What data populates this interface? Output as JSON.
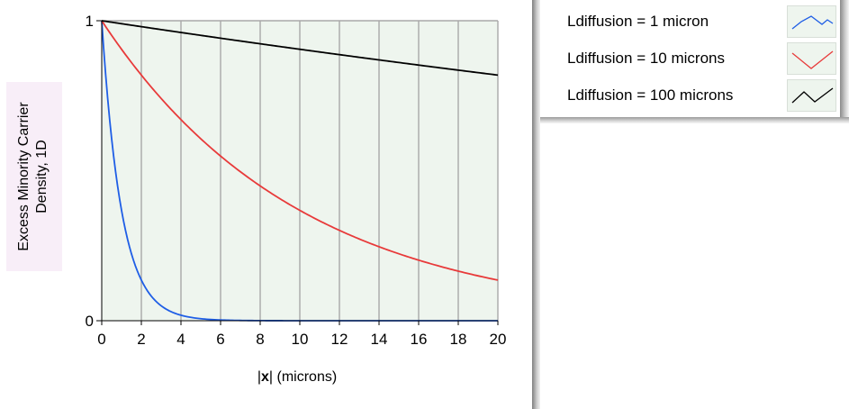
{
  "chart_data": {
    "type": "line",
    "xlabel": {
      "prefix": "|",
      "bold": "x",
      "suffix": "| (microns)"
    },
    "ylabel": [
      "Excess Minority Carrier",
      "Density, 1D"
    ],
    "xlim": [
      0,
      20
    ],
    "ylim": [
      0,
      1
    ],
    "x_ticks": [
      0,
      2,
      4,
      6,
      8,
      10,
      12,
      14,
      16,
      18,
      20
    ],
    "y_ticks": [
      0,
      1
    ],
    "grid": "vertical",
    "legend_position": "top-right",
    "series": [
      {
        "name": "Ldiffusion = 1 micron",
        "color": "#1f5ee6",
        "diffusion_length": 1,
        "x": [
          0,
          0.5,
          1,
          1.5,
          2,
          2.5,
          3,
          4,
          5,
          6,
          8,
          10,
          12,
          14,
          16,
          18,
          20
        ],
        "y": [
          1,
          0.607,
          0.368,
          0.223,
          0.135,
          0.082,
          0.05,
          0.018,
          0.007,
          0.002,
          0,
          0,
          0,
          0,
          0,
          0,
          0
        ]
      },
      {
        "name": "Ldiffusion = 10 microns",
        "color": "#e83a3a",
        "diffusion_length": 10,
        "x": [
          0,
          2,
          4,
          6,
          8,
          10,
          12,
          14,
          16,
          18,
          20
        ],
        "y": [
          1,
          0.819,
          0.67,
          0.549,
          0.449,
          0.368,
          0.301,
          0.247,
          0.202,
          0.165,
          0.135
        ]
      },
      {
        "name": "Ldiffusion = 100 microns",
        "color": "#000000",
        "diffusion_length": 100,
        "x": [
          0,
          2,
          4,
          6,
          8,
          10,
          12,
          14,
          16,
          18,
          20
        ],
        "y": [
          1,
          0.98,
          0.961,
          0.942,
          0.923,
          0.905,
          0.887,
          0.869,
          0.852,
          0.835,
          0.819
        ]
      }
    ]
  },
  "colors": {
    "plot_background": "#eef5ee",
    "grid": "#a8a8a8",
    "ylabel_background": "#f8eef8"
  }
}
